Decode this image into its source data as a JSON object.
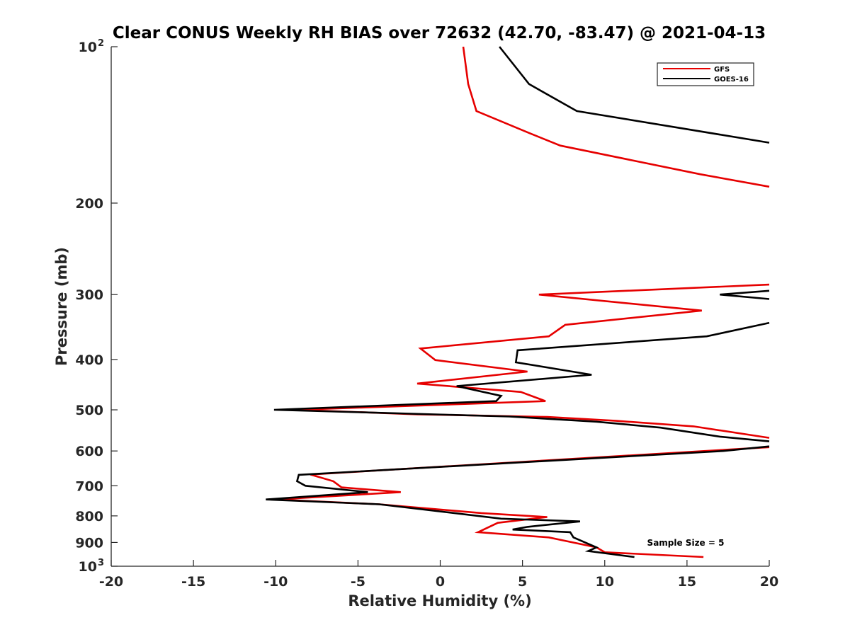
{
  "chart_data": {
    "type": "line",
    "title": "Clear CONUS Weekly RH BIAS over 72632 (42.70, -83.47) @ 2021-04-13",
    "xlabel": "Relative Humidity (%)",
    "ylabel": "Pressure (mb)",
    "xlim": [
      -20,
      20
    ],
    "ylim": [
      100,
      1000
    ],
    "y_scale": "log",
    "y_reversed": true,
    "grid": false,
    "legend_position": "top-right",
    "x_ticks": [
      {
        "value": -20,
        "label": "-20"
      },
      {
        "value": -15,
        "label": "-15"
      },
      {
        "value": -10,
        "label": "-10"
      },
      {
        "value": -5,
        "label": "-5"
      },
      {
        "value": 0,
        "label": "0"
      },
      {
        "value": 5,
        "label": "5"
      },
      {
        "value": 10,
        "label": "10"
      },
      {
        "value": 15,
        "label": "15"
      },
      {
        "value": 20,
        "label": "20"
      }
    ],
    "y_ticks": [
      {
        "value": 100,
        "label": "10",
        "exp": "2"
      },
      {
        "value": 200,
        "label": "200",
        "exp": ""
      },
      {
        "value": 300,
        "label": "300",
        "exp": ""
      },
      {
        "value": 400,
        "label": "400",
        "exp": ""
      },
      {
        "value": 500,
        "label": "500",
        "exp": ""
      },
      {
        "value": 600,
        "label": "600",
        "exp": ""
      },
      {
        "value": 700,
        "label": "700",
        "exp": ""
      },
      {
        "value": 800,
        "label": "800",
        "exp": ""
      },
      {
        "value": 900,
        "label": "900",
        "exp": ""
      },
      {
        "value": 1000,
        "label": "10",
        "exp": "3"
      }
    ],
    "annotation": "Sample Size = 5",
    "series": [
      {
        "name": "GFS",
        "color": "#e60000",
        "segments": [
          [
            [
              1.4,
              100
            ],
            [
              1.7,
              118
            ],
            [
              2.2,
              133
            ],
            [
              5.5,
              147
            ],
            [
              7.3,
              155
            ],
            [
              15.8,
              176
            ],
            [
              20,
              186
            ]
          ],
          [
            [
              20,
              287
            ],
            [
              6.0,
              300
            ],
            [
              15.9,
              322
            ],
            [
              7.6,
              343
            ],
            [
              6.6,
              361
            ],
            [
              -1.2,
              381
            ],
            [
              -0.3,
              401
            ],
            [
              5.3,
              422
            ],
            [
              -1.4,
              445
            ],
            [
              4.9,
              462
            ],
            [
              6.4,
              481
            ],
            [
              -8.7,
              500
            ],
            [
              -1.4,
              510
            ],
            [
              6.5,
              516
            ],
            [
              10.7,
              525
            ],
            [
              15.4,
              538
            ],
            [
              20,
              566
            ]
          ],
          [
            [
              20,
              590
            ],
            [
              -7.9,
              666
            ],
            [
              -6.5,
              686
            ],
            [
              -6.0,
              705
            ],
            [
              -2.4,
              720
            ],
            [
              -10.0,
              744
            ],
            [
              -3.7,
              760
            ],
            [
              2.5,
              790
            ],
            [
              6.5,
              804
            ],
            [
              3.5,
              825
            ],
            [
              2.3,
              860
            ],
            [
              6.6,
              880
            ],
            [
              9.5,
              920
            ],
            [
              10.0,
              940
            ],
            [
              16.0,
              960
            ]
          ]
        ]
      },
      {
        "name": "GOES-16",
        "color": "#000000",
        "segments": [
          [
            [
              3.6,
              100
            ],
            [
              5.4,
              118
            ],
            [
              8.3,
              133
            ],
            [
              20,
              153
            ]
          ],
          [
            [
              20,
              295
            ],
            [
              17.0,
              300
            ],
            [
              20,
              306
            ]
          ],
          [
            [
              20,
              340
            ],
            [
              16.2,
              361
            ],
            [
              4.7,
              384
            ],
            [
              4.6,
              405
            ],
            [
              9.2,
              428
            ],
            [
              1.0,
              450
            ],
            [
              3.7,
              470
            ],
            [
              3.4,
              481
            ],
            [
              -10.1,
              500
            ],
            [
              4.2,
              515
            ],
            [
              9.5,
              527
            ],
            [
              13.4,
              541
            ],
            [
              17.0,
              563
            ],
            [
              20,
              575
            ]
          ],
          [
            [
              20,
              588
            ],
            [
              17.2,
              600
            ],
            [
              -8.6,
              667
            ],
            [
              -8.7,
              686
            ],
            [
              -8.2,
              700
            ],
            [
              -4.4,
              720
            ],
            [
              -10.6,
              744
            ],
            [
              -3.7,
              760
            ],
            [
              3.7,
              810
            ],
            [
              8.5,
              820
            ],
            [
              5.3,
              840
            ],
            [
              4.4,
              850
            ],
            [
              7.9,
              860
            ],
            [
              8.1,
              880
            ],
            [
              9.5,
              920
            ],
            [
              9.0,
              935
            ],
            [
              11.8,
              960
            ]
          ]
        ]
      }
    ]
  }
}
